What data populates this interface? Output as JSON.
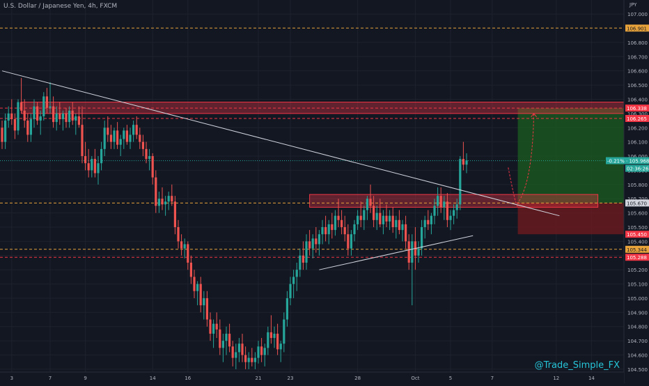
{
  "header": {
    "symbol": "U.S. Dollar / Japanese Yen, 4h, FXCM",
    "axis_unit": "JPY"
  },
  "watermark": "@Trade_Simple_FX",
  "colors": {
    "background": "#131722",
    "grid": "#1e222d",
    "bull": "#26a69a",
    "bear": "#ef5350",
    "text": "#b2b5be",
    "zone_red": "#f23645",
    "zone_orange": "#e8a33b",
    "tp_green": "#1b5e20",
    "sl_red": "#6d1a1f",
    "current_price": "#26a69a",
    "line_white": "#d1d4dc"
  },
  "chart_data": {
    "type": "candlestick",
    "title": "U.S. Dollar / Japanese Yen, 4h, FXCM",
    "ylabel": "JPY",
    "ylim": [
      104.5,
      107.05
    ],
    "grid": true,
    "y_ticks": [
      "107.000",
      "106.800",
      "106.700",
      "106.600",
      "106.500",
      "106.400",
      "106.300",
      "106.200",
      "106.100",
      "106.000",
      "105.900",
      "105.800",
      "105.700",
      "105.600",
      "105.500",
      "105.400",
      "105.300",
      "105.200",
      "105.100",
      "105.000",
      "104.900",
      "104.800",
      "104.700",
      "104.600",
      "104.500"
    ],
    "x_ticks": [
      {
        "label": "3",
        "bar": 3
      },
      {
        "label": "7",
        "bar": 15
      },
      {
        "label": "9",
        "bar": 26
      },
      {
        "label": "14",
        "bar": 47
      },
      {
        "label": "16",
        "bar": 58
      },
      {
        "label": "21",
        "bar": 80
      },
      {
        "label": "23",
        "bar": 90
      },
      {
        "label": "28",
        "bar": 111
      },
      {
        "label": "Oct",
        "bar": 129
      },
      {
        "label": "5",
        "bar": 140
      },
      {
        "label": "7",
        "bar": 153
      },
      {
        "label": "12",
        "bar": 173
      },
      {
        "label": "14",
        "bar": 184
      }
    ],
    "price_labels": [
      {
        "price": 106.901,
        "text": "106.901",
        "kind": "orange"
      },
      {
        "price": 106.338,
        "text": "106.338",
        "kind": "red"
      },
      {
        "price": 106.265,
        "text": "106.265",
        "kind": "red"
      },
      {
        "price": 105.968,
        "text": "-0.21% · 105.968",
        "kind": "current"
      },
      {
        "price": 105.67,
        "text": "105.670",
        "kind": "white"
      },
      {
        "price": 105.45,
        "text": "105.450",
        "kind": "red"
      },
      {
        "price": 105.344,
        "text": "105.344",
        "kind": "orange"
      },
      {
        "price": 105.288,
        "text": "105.288",
        "kind": "red"
      }
    ],
    "countdown": "02:36:26",
    "levels": [
      {
        "price": 106.901,
        "style": "orange-dashed"
      },
      {
        "price": 106.338,
        "style": "red-dashed"
      },
      {
        "price": 106.265,
        "style": "red-dashed"
      },
      {
        "price": 105.67,
        "style": "orange-dashed"
      },
      {
        "price": 105.344,
        "style": "orange-dashed"
      },
      {
        "price": 105.288,
        "style": "red-dashed"
      }
    ],
    "zones": [
      {
        "from_bar": 6,
        "to_bar": 197,
        "top": 106.38,
        "bottom": 106.3,
        "color": "red"
      },
      {
        "from_bar": 96,
        "to_bar": 186,
        "top": 105.73,
        "bottom": 105.64,
        "color": "red"
      }
    ],
    "position": {
      "from_bar": 161,
      "to_bar": 197,
      "entry": 105.67,
      "target": 106.338,
      "stop": 105.45
    },
    "trendlines": [
      {
        "from": [
          0,
          106.6
        ],
        "to": [
          174,
          105.58
        ]
      },
      {
        "from": [
          99,
          105.2
        ],
        "to": [
          147,
          105.44
        ]
      }
    ],
    "arrow_path": [
      [
        158,
        105.92
      ],
      [
        161,
        105.67
      ],
      [
        166,
        106.3
      ]
    ],
    "candles": [
      [
        106.2,
        106.25,
        106.05,
        106.1
      ],
      [
        106.1,
        106.3,
        106.05,
        106.25
      ],
      [
        106.25,
        106.35,
        106.2,
        106.3
      ],
      [
        106.3,
        106.4,
        106.22,
        106.26
      ],
      [
        106.26,
        106.3,
        106.12,
        106.18
      ],
      [
        106.18,
        106.4,
        106.15,
        106.38
      ],
      [
        106.38,
        106.55,
        106.3,
        106.32
      ],
      [
        106.32,
        106.4,
        106.2,
        106.25
      ],
      [
        106.25,
        106.3,
        106.1,
        106.15
      ],
      [
        106.15,
        106.3,
        106.1,
        106.26
      ],
      [
        106.26,
        106.4,
        106.2,
        106.35
      ],
      [
        106.35,
        106.38,
        106.22,
        106.25
      ],
      [
        106.25,
        106.32,
        106.15,
        106.28
      ],
      [
        106.28,
        106.45,
        106.25,
        106.42
      ],
      [
        106.42,
        106.48,
        106.3,
        106.34
      ],
      [
        106.34,
        106.52,
        106.3,
        106.35
      ],
      [
        106.35,
        106.42,
        106.2,
        106.24
      ],
      [
        106.24,
        106.35,
        106.18,
        106.3
      ],
      [
        106.3,
        106.38,
        106.22,
        106.26
      ],
      [
        106.26,
        106.32,
        106.18,
        106.3
      ],
      [
        106.3,
        106.34,
        106.2,
        106.24
      ],
      [
        106.24,
        106.35,
        106.2,
        106.32
      ],
      [
        106.32,
        106.38,
        106.22,
        106.25
      ],
      [
        106.25,
        106.3,
        106.15,
        106.28
      ],
      [
        106.28,
        106.35,
        106.2,
        106.22
      ],
      [
        106.22,
        106.35,
        105.95,
        106.0
      ],
      [
        106.0,
        106.1,
        105.9,
        105.95
      ],
      [
        105.95,
        106.05,
        105.85,
        105.9
      ],
      [
        105.9,
        106.0,
        105.85,
        105.98
      ],
      [
        105.98,
        106.05,
        105.85,
        105.88
      ],
      [
        105.88,
        106.0,
        105.8,
        105.95
      ],
      [
        105.95,
        106.1,
        105.9,
        106.05
      ],
      [
        106.05,
        106.25,
        106.0,
        106.2
      ],
      [
        106.2,
        106.28,
        106.1,
        106.15
      ],
      [
        106.15,
        106.22,
        106.05,
        106.1
      ],
      [
        106.1,
        106.2,
        106.05,
        106.18
      ],
      [
        106.18,
        106.24,
        106.05,
        106.08
      ],
      [
        106.08,
        106.15,
        106.0,
        106.12
      ],
      [
        106.12,
        106.2,
        106.05,
        106.18
      ],
      [
        106.18,
        106.22,
        106.08,
        106.1
      ],
      [
        106.1,
        106.2,
        106.05,
        106.15
      ],
      [
        106.15,
        106.25,
        106.1,
        106.22
      ],
      [
        106.22,
        106.28,
        106.12,
        106.15
      ],
      [
        106.15,
        106.2,
        106.05,
        106.1
      ],
      [
        106.1,
        106.15,
        106.0,
        106.05
      ],
      [
        106.05,
        106.1,
        105.95,
        105.98
      ],
      [
        105.98,
        106.05,
        105.9,
        106.0
      ],
      [
        106.0,
        106.02,
        105.8,
        105.85
      ],
      [
        105.85,
        105.9,
        105.6,
        105.65
      ],
      [
        105.65,
        105.75,
        105.6,
        105.7
      ],
      [
        105.7,
        105.78,
        105.62,
        105.66
      ],
      [
        105.66,
        105.72,
        105.58,
        105.68
      ],
      [
        105.68,
        105.75,
        105.62,
        105.72
      ],
      [
        105.72,
        105.8,
        105.65,
        105.68
      ],
      [
        105.68,
        105.72,
        105.45,
        105.5
      ],
      [
        105.5,
        105.55,
        105.35,
        105.4
      ],
      [
        105.4,
        105.45,
        105.3,
        105.35
      ],
      [
        105.35,
        105.42,
        105.28,
        105.38
      ],
      [
        105.38,
        105.4,
        105.2,
        105.25
      ],
      [
        105.25,
        105.3,
        105.1,
        105.15
      ],
      [
        105.15,
        105.2,
        105.0,
        105.05
      ],
      [
        105.05,
        105.12,
        104.95,
        105.1
      ],
      [
        105.1,
        105.15,
        104.9,
        104.95
      ],
      [
        104.95,
        105.05,
        104.85,
        105.0
      ],
      [
        105.0,
        105.05,
        104.8,
        104.85
      ],
      [
        104.85,
        104.9,
        104.7,
        104.75
      ],
      [
        104.75,
        104.85,
        104.65,
        104.82
      ],
      [
        104.82,
        104.9,
        104.72,
        104.78
      ],
      [
        104.78,
        104.85,
        104.6,
        104.65
      ],
      [
        104.65,
        104.75,
        104.55,
        104.7
      ],
      [
        104.7,
        104.8,
        104.6,
        104.75
      ],
      [
        104.75,
        104.82,
        104.62,
        104.66
      ],
      [
        104.66,
        104.7,
        104.52,
        104.58
      ],
      [
        104.58,
        104.68,
        104.5,
        104.62
      ],
      [
        104.62,
        104.72,
        104.55,
        104.68
      ],
      [
        104.68,
        104.75,
        104.55,
        104.6
      ],
      [
        104.6,
        104.66,
        104.5,
        104.55
      ],
      [
        104.55,
        104.62,
        104.5,
        104.58
      ],
      [
        104.58,
        104.65,
        104.52,
        104.55
      ],
      [
        104.55,
        104.62,
        104.5,
        104.58
      ],
      [
        104.58,
        104.7,
        104.54,
        104.66
      ],
      [
        104.66,
        104.72,
        104.55,
        104.6
      ],
      [
        104.6,
        104.68,
        104.52,
        104.65
      ],
      [
        104.65,
        104.8,
        104.6,
        104.76
      ],
      [
        104.76,
        104.88,
        104.68,
        104.72
      ],
      [
        104.72,
        104.8,
        104.65,
        104.75
      ],
      [
        104.75,
        104.82,
        104.6,
        104.64
      ],
      [
        104.64,
        104.7,
        104.55,
        104.68
      ],
      [
        104.68,
        104.9,
        104.62,
        104.85
      ],
      [
        104.85,
        105.05,
        104.8,
        105.0
      ],
      [
        105.0,
        105.15,
        104.95,
        105.1
      ],
      [
        105.1,
        105.2,
        105.0,
        105.15
      ],
      [
        105.15,
        105.25,
        105.05,
        105.2
      ],
      [
        105.2,
        105.35,
        105.15,
        105.3
      ],
      [
        105.3,
        105.4,
        105.2,
        105.25
      ],
      [
        105.25,
        105.45,
        105.2,
        105.4
      ],
      [
        105.4,
        105.48,
        105.3,
        105.35
      ],
      [
        105.35,
        105.45,
        105.28,
        105.42
      ],
      [
        105.42,
        105.5,
        105.32,
        105.38
      ],
      [
        105.38,
        105.48,
        105.3,
        105.45
      ],
      [
        105.45,
        105.55,
        105.38,
        105.5
      ],
      [
        105.5,
        105.58,
        105.4,
        105.45
      ],
      [
        105.45,
        105.55,
        105.38,
        105.52
      ],
      [
        105.52,
        105.6,
        105.42,
        105.48
      ],
      [
        105.48,
        105.62,
        105.44,
        105.58
      ],
      [
        105.58,
        105.7,
        105.5,
        105.55
      ],
      [
        105.55,
        105.62,
        105.45,
        105.5
      ],
      [
        105.5,
        105.58,
        105.4,
        105.45
      ],
      [
        105.45,
        105.52,
        105.3,
        105.35
      ],
      [
        105.35,
        105.48,
        105.3,
        105.45
      ],
      [
        105.45,
        105.55,
        105.4,
        105.52
      ],
      [
        105.52,
        105.62,
        105.48,
        105.58
      ],
      [
        105.58,
        105.68,
        105.5,
        105.55
      ],
      [
        105.55,
        105.65,
        105.48,
        105.62
      ],
      [
        105.62,
        105.72,
        105.55,
        105.7
      ],
      [
        105.7,
        105.8,
        105.6,
        105.65
      ],
      [
        105.65,
        105.72,
        105.5,
        105.55
      ],
      [
        105.55,
        105.65,
        105.48,
        105.6
      ],
      [
        105.6,
        105.7,
        105.5,
        105.52
      ],
      [
        105.52,
        105.62,
        105.45,
        105.58
      ],
      [
        105.58,
        105.66,
        105.5,
        105.54
      ],
      [
        105.54,
        105.62,
        105.48,
        105.58
      ],
      [
        105.58,
        105.64,
        105.46,
        105.5
      ],
      [
        105.5,
        105.58,
        105.42,
        105.55
      ],
      [
        105.55,
        105.62,
        105.45,
        105.48
      ],
      [
        105.48,
        105.55,
        105.4,
        105.52
      ],
      [
        105.52,
        105.58,
        105.35,
        105.4
      ],
      [
        105.4,
        105.45,
        105.2,
        105.25
      ],
      [
        105.25,
        105.45,
        104.95,
        105.4
      ],
      [
        105.4,
        105.5,
        105.2,
        105.3
      ],
      [
        105.3,
        105.4,
        105.25,
        105.35
      ],
      [
        105.35,
        105.55,
        105.3,
        105.5
      ],
      [
        105.5,
        105.58,
        105.42,
        105.55
      ],
      [
        105.55,
        105.62,
        105.48,
        105.52
      ],
      [
        105.52,
        105.6,
        105.45,
        105.58
      ],
      [
        105.58,
        105.7,
        105.52,
        105.65
      ],
      [
        105.65,
        105.78,
        105.58,
        105.72
      ],
      [
        105.72,
        105.78,
        105.6,
        105.64
      ],
      [
        105.64,
        105.72,
        105.55,
        105.68
      ],
      [
        105.68,
        105.74,
        105.5,
        105.55
      ],
      [
        105.55,
        105.62,
        105.48,
        105.58
      ],
      [
        105.58,
        105.66,
        105.52,
        105.62
      ],
      [
        105.62,
        105.7,
        105.56,
        105.66
      ],
      [
        105.66,
        106.0,
        105.62,
        105.98
      ],
      [
        105.98,
        106.1,
        105.9,
        105.94
      ],
      [
        105.94,
        106.02,
        105.88,
        105.97
      ]
    ]
  }
}
